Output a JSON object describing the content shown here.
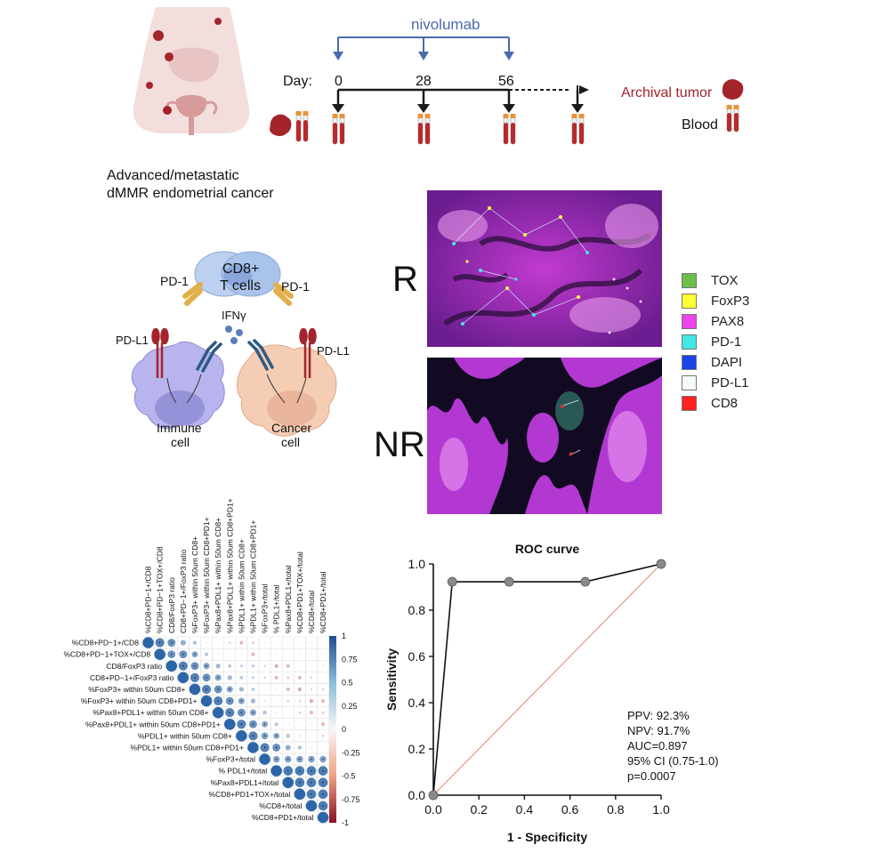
{
  "timeline": {
    "drug": "nivolumab",
    "day_label": "Day:",
    "days": [
      "0",
      "28",
      "56"
    ],
    "archival_label": "Archival tumor",
    "blood_label": "Blood",
    "colors": {
      "drug_line": "#4a6aad",
      "tumor": "#a3242a",
      "arrow": "#1a1a1a"
    }
  },
  "cohort": {
    "line1": "Advanced/metastatic",
    "line2": "dMMR endometrial cancer"
  },
  "mechanism": {
    "tcell_line1": "CD8+",
    "tcell_line2": "T cells",
    "pd1_left": "PD-1",
    "pd1_right": "PD-1",
    "ifng": "IFNγ",
    "pdl1_left": "PD-L1",
    "pdl1_right": "PD-L1",
    "immune_line1": "Immune",
    "immune_line2": "cell",
    "cancer_line1": "Cancer",
    "cancer_line2": "cell",
    "colors": {
      "tcell": "#a9c3ea",
      "immune": "#b8b4ee",
      "cancer": "#f4cdb4",
      "pdl1": "#a3242a",
      "pd1": "#e1b04a",
      "receptor": "#2d5a84"
    }
  },
  "imaging": {
    "responder_label": "R",
    "nonresponder_label": "NR",
    "markers": [
      {
        "name": "TOX",
        "color": "#6cc04a"
      },
      {
        "name": "FoxP3",
        "color": "#ffff33"
      },
      {
        "name": "PAX8",
        "color": "#ee44ee"
      },
      {
        "name": "PD-1",
        "color": "#44e6e6"
      },
      {
        "name": "DAPI",
        "color": "#1a44e8"
      },
      {
        "name": "PD-L1",
        "color": "#f4fbf4"
      },
      {
        "name": "CD8",
        "color": "#ff2222"
      }
    ]
  },
  "corrplot": {
    "variables": [
      "%CD8+PD−1+/CD8",
      "%CD8+PD−1+TOX+/CD8",
      "CD8/FoxP3 ratio",
      "CD8+PD−1+/FoxP3 ratio",
      "%FoxP3+ within 50um CD8+",
      "%FoxP3+ within 50um CD8+PD1+",
      "%Pax8+PDL1+ within 50um CD8+",
      "%Pax8+PDL1+ within 50um CD8+PD1+",
      "%PDL1+ within 50um CD8+",
      "%PDL1+ within 50um CD8+PD1+",
      "%FoxP3+/total",
      "% PDL1+/total",
      "%Pax8+PDL1+/total",
      "%CD8+PD1+TOX+/total",
      "%CD8+/total",
      "%CD8+PD1+/total"
    ],
    "scale_ticks": [
      "1",
      "0.75",
      "0.5",
      "0.25",
      "0",
      "-0.25",
      "-0.5",
      "-0.75",
      "-1"
    ],
    "colors": {
      "positive": "#2d66a8",
      "negative": "#b42028",
      "neutral": "#f7f7f7"
    }
  },
  "chart_data": {
    "type": "line",
    "title": "ROC curve",
    "xlabel": "1 - Specificity",
    "ylabel": "Sensitivity",
    "xlim": [
      0.0,
      1.0
    ],
    "ylim": [
      0.0,
      1.0
    ],
    "x_ticks": [
      "0.0",
      "0.2",
      "0.4",
      "0.6",
      "0.8",
      "1.0"
    ],
    "y_ticks": [
      "0.0",
      "0.2",
      "0.4",
      "0.6",
      "0.8",
      "1.0"
    ],
    "series": [
      {
        "x": [
          0.0,
          0.083,
          0.333,
          0.667,
          1.0
        ],
        "y": [
          0.0,
          0.923,
          0.923,
          0.923,
          1.0
        ],
        "color": "#111111"
      },
      {
        "x": [
          0.0,
          1.0
        ],
        "y": [
          0.0,
          1.0
        ],
        "color": "#e0846a"
      }
    ],
    "annotations": [
      "PPV: 92.3%",
      "NPV: 91.7%",
      "AUC=0.897",
      "95% CI (0.75-1.0)",
      "p=0.0007"
    ],
    "grid": false,
    "legend": "none"
  }
}
